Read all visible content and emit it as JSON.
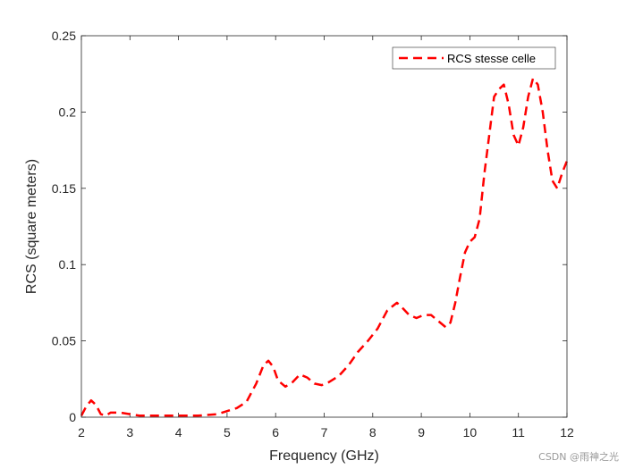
{
  "chart_data": {
    "type": "line",
    "title": "",
    "xlabel": "Frequency (GHz)",
    "ylabel": "RCS (square meters)",
    "xlim": [
      2,
      12
    ],
    "ylim": [
      0,
      0.25
    ],
    "xticks": [
      2,
      3,
      4,
      5,
      6,
      7,
      8,
      9,
      10,
      11,
      12
    ],
    "yticks": [
      0,
      0.05,
      0.1,
      0.15,
      0.2,
      0.25
    ],
    "xtick_labels": [
      "2",
      "3",
      "4",
      "5",
      "6",
      "7",
      "8",
      "9",
      "10",
      "11",
      "12"
    ],
    "ytick_labels": [
      "0",
      "0.05",
      "0.1",
      "0.15",
      "0.2",
      "0.25"
    ],
    "legend_position": "top-right",
    "series": [
      {
        "name": "RCS stesse celle",
        "color": "#ff0000",
        "style": "dashed",
        "x": [
          2.0,
          2.1,
          2.2,
          2.3,
          2.4,
          2.5,
          2.6,
          2.8,
          3.0,
          3.2,
          3.5,
          4.0,
          4.4,
          4.8,
          5.0,
          5.2,
          5.4,
          5.6,
          5.75,
          5.85,
          5.95,
          6.05,
          6.2,
          6.35,
          6.5,
          6.65,
          6.8,
          6.95,
          7.1,
          7.3,
          7.5,
          7.7,
          7.9,
          8.1,
          8.3,
          8.5,
          8.6,
          8.75,
          8.9,
          9.05,
          9.2,
          9.35,
          9.5,
          9.6,
          9.7,
          9.8,
          9.9,
          10.0,
          10.1,
          10.2,
          10.3,
          10.4,
          10.5,
          10.6,
          10.7,
          10.8,
          10.9,
          11.0,
          11.1,
          11.2,
          11.3,
          11.4,
          11.5,
          11.6,
          11.7,
          11.8,
          11.9,
          12.0
        ],
        "y": [
          0.001,
          0.007,
          0.011,
          0.008,
          0.002,
          0.001,
          0.003,
          0.003,
          0.002,
          0.001,
          0.001,
          0.001,
          0.001,
          0.002,
          0.004,
          0.006,
          0.01,
          0.022,
          0.034,
          0.037,
          0.033,
          0.024,
          0.02,
          0.023,
          0.028,
          0.026,
          0.022,
          0.021,
          0.023,
          0.027,
          0.034,
          0.043,
          0.05,
          0.058,
          0.07,
          0.075,
          0.072,
          0.067,
          0.065,
          0.067,
          0.067,
          0.063,
          0.059,
          0.062,
          0.075,
          0.092,
          0.108,
          0.115,
          0.118,
          0.13,
          0.16,
          0.185,
          0.21,
          0.215,
          0.218,
          0.205,
          0.185,
          0.178,
          0.19,
          0.21,
          0.222,
          0.218,
          0.2,
          0.175,
          0.155,
          0.15,
          0.16,
          0.168
        ]
      }
    ]
  },
  "watermark": "CSDN @雨神之光"
}
